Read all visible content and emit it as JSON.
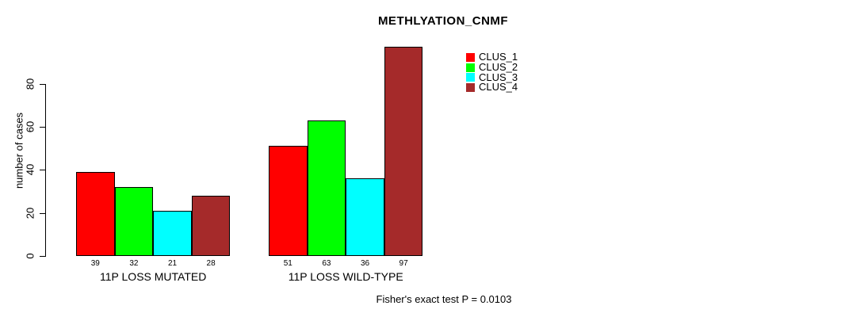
{
  "page": {
    "background": "#FFFFFF",
    "text_color": "#000000"
  },
  "chart_data": {
    "type": "bar",
    "title": "METHLYATION_CNMF",
    "ylabel": "number of cases",
    "xlabel": "",
    "ylim": [
      0,
      80
    ],
    "y_ticks": [
      0,
      20,
      40,
      60,
      80
    ],
    "grid": false,
    "categories": [
      "11P LOSS MUTATED",
      "11P LOSS WILD-TYPE"
    ],
    "series": [
      {
        "name": "CLUS_1",
        "color": "#FF0000",
        "values": [
          39,
          51
        ]
      },
      {
        "name": "CLUS_2",
        "color": "#00FF00",
        "values": [
          32,
          63
        ]
      },
      {
        "name": "CLUS_3",
        "color": "#00FFFF",
        "values": [
          21,
          36
        ]
      },
      {
        "name": "CLUS_4",
        "color": "#A52A2A",
        "values": [
          28,
          97
        ]
      }
    ],
    "bar_value_labels_shown": true,
    "legend_position": "top-right",
    "annotation": "Fisher's exact test P = 0.0103"
  }
}
